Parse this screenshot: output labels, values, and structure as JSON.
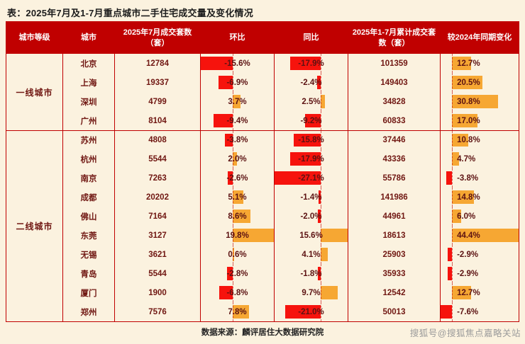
{
  "page": {
    "title": "表：2025年7月及1-7月重点城市二手住宅成交量及变化情况",
    "source_note": "数据来源：麟评居住大数据研究院",
    "watermark": "搜狐号@搜狐焦点嘉略关站"
  },
  "colors": {
    "header_bg": "#c00000",
    "border": "#c00000",
    "page_bg": "#fbf2df",
    "positive_bar": "#f6a733",
    "negative_bar": "#f6130d",
    "body_text": "#701712"
  },
  "table": {
    "columns": [
      "城市等级",
      "城市",
      "2025年7月成交套数（套）",
      "环比",
      "同比",
      "2025年1-7月累计成交套数（套）",
      "较2024年同期变化"
    ],
    "groups": [
      {
        "tier": "一线城市",
        "rows": [
          {
            "city": "北京",
            "jul_units": 12784,
            "mom_pct": -15.6,
            "yoy_pct": -17.9,
            "cum_units": 101359,
            "vs_2024_pct": 12.7
          },
          {
            "city": "上海",
            "jul_units": 19337,
            "mom_pct": -6.9,
            "yoy_pct": -2.4,
            "cum_units": 149403,
            "vs_2024_pct": 20.5
          },
          {
            "city": "深圳",
            "jul_units": 4799,
            "mom_pct": 3.7,
            "yoy_pct": 2.5,
            "cum_units": 34828,
            "vs_2024_pct": 30.8
          },
          {
            "city": "广州",
            "jul_units": 8104,
            "mom_pct": -9.4,
            "yoy_pct": -9.2,
            "cum_units": 60833,
            "vs_2024_pct": 17.0
          }
        ]
      },
      {
        "tier": "二线城市",
        "rows": [
          {
            "city": "苏州",
            "jul_units": 4808,
            "mom_pct": -3.8,
            "yoy_pct": -15.8,
            "cum_units": 37446,
            "vs_2024_pct": 10.8
          },
          {
            "city": "杭州",
            "jul_units": 5544,
            "mom_pct": 2.0,
            "yoy_pct": -17.9,
            "cum_units": 43336,
            "vs_2024_pct": 4.7
          },
          {
            "city": "南京",
            "jul_units": 7263,
            "mom_pct": -2.6,
            "yoy_pct": -27.1,
            "cum_units": 55786,
            "vs_2024_pct": -3.8
          },
          {
            "city": "成都",
            "jul_units": 20202,
            "mom_pct": 5.1,
            "yoy_pct": -1.4,
            "cum_units": 141986,
            "vs_2024_pct": 14.8
          },
          {
            "city": "佛山",
            "jul_units": 7164,
            "mom_pct": 8.6,
            "yoy_pct": -2.0,
            "cum_units": 44961,
            "vs_2024_pct": 6.0
          },
          {
            "city": "东莞",
            "jul_units": 3127,
            "mom_pct": 19.8,
            "yoy_pct": 15.6,
            "cum_units": 18613,
            "vs_2024_pct": 44.4
          },
          {
            "city": "无锡",
            "jul_units": 3621,
            "mom_pct": 0.6,
            "yoy_pct": 4.1,
            "cum_units": 25903,
            "vs_2024_pct": -2.9
          },
          {
            "city": "青岛",
            "jul_units": 5544,
            "mom_pct": -2.8,
            "yoy_pct": -1.8,
            "cum_units": 35933,
            "vs_2024_pct": -2.9
          },
          {
            "city": "厦门",
            "jul_units": 1900,
            "mom_pct": -6.8,
            "yoy_pct": 9.7,
            "cum_units": 12542,
            "vs_2024_pct": 12.7
          },
          {
            "city": "郑州",
            "jul_units": 7576,
            "mom_pct": 7.8,
            "yoy_pct": -21.0,
            "cum_units": 50013,
            "vs_2024_pct": -7.6
          }
        ]
      }
    ]
  },
  "chart_data": {
    "type": "table",
    "title": "表：2025年7月及1-7月重点城市二手住宅成交量及变化情况",
    "columns": [
      "城市等级",
      "城市",
      "2025年7月成交套数（套）",
      "环比",
      "同比",
      "2025年1-7月累计成交套数（套）",
      "较2024年同期变化"
    ],
    "bar_columns": {
      "环比": {
        "min": -15.6,
        "max": 19.8,
        "negative_color": "#f6130d",
        "positive_color": "#f6a733"
      },
      "同比": {
        "min": -27.1,
        "max": 15.6,
        "negative_color": "#f6130d",
        "positive_color": "#f6a733"
      },
      "较2024年同期变化": {
        "min": -7.6,
        "max": 44.4,
        "negative_color": "#f6130d",
        "positive_color": "#f6a733"
      }
    },
    "rows": [
      [
        "一线城市",
        "北京",
        12784,
        -15.6,
        -17.9,
        101359,
        12.7
      ],
      [
        "一线城市",
        "上海",
        19337,
        -6.9,
        -2.4,
        149403,
        20.5
      ],
      [
        "一线城市",
        "深圳",
        4799,
        3.7,
        2.5,
        34828,
        30.8
      ],
      [
        "一线城市",
        "广州",
        8104,
        -9.4,
        -9.2,
        60833,
        17.0
      ],
      [
        "二线城市",
        "苏州",
        4808,
        -3.8,
        -15.8,
        37446,
        10.8
      ],
      [
        "二线城市",
        "杭州",
        5544,
        2.0,
        -17.9,
        43336,
        4.7
      ],
      [
        "二线城市",
        "南京",
        7263,
        -2.6,
        -27.1,
        55786,
        -3.8
      ],
      [
        "二线城市",
        "成都",
        20202,
        5.1,
        -1.4,
        141986,
        14.8
      ],
      [
        "二线城市",
        "佛山",
        7164,
        8.6,
        -2.0,
        44961,
        6.0
      ],
      [
        "二线城市",
        "东莞",
        3127,
        19.8,
        15.6,
        18613,
        44.4
      ],
      [
        "二线城市",
        "无锡",
        3621,
        0.6,
        4.1,
        25903,
        -2.9
      ],
      [
        "二线城市",
        "青岛",
        5544,
        -2.8,
        -1.8,
        35933,
        -2.9
      ],
      [
        "二线城市",
        "厦门",
        1900,
        -6.8,
        9.7,
        12542,
        12.7
      ],
      [
        "二线城市",
        "郑州",
        7576,
        7.8,
        -21.0,
        50013,
        -7.6
      ]
    ],
    "source": "数据来源：麟评居住大数据研究院"
  }
}
